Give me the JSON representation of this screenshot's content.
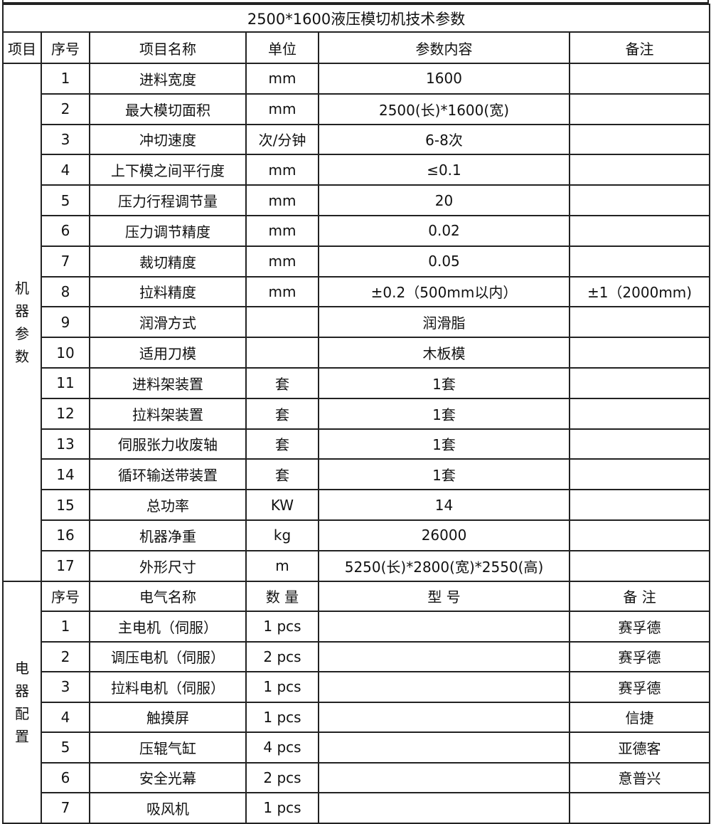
{
  "title": "2500*1600液压模切机技术参数",
  "header": [
    "项目",
    "序号",
    "项目名称",
    "单位",
    "参数内容",
    "备注"
  ],
  "machine": {
    "group": "机器参数",
    "rows": [
      [
        "1",
        "进料宽度",
        "mm",
        "1600",
        ""
      ],
      [
        "2",
        "最大模切面积",
        "mm",
        "2500(长)*1600(宽)",
        ""
      ],
      [
        "3",
        "冲切速度",
        "次/分钟",
        "6-8次",
        ""
      ],
      [
        "4",
        "上下模之间平行度",
        "mm",
        "≤0.1",
        ""
      ],
      [
        "5",
        "压力行程调节量",
        "mm",
        "20",
        ""
      ],
      [
        "6",
        "压力调节精度",
        "mm",
        "0.02",
        ""
      ],
      [
        "7",
        "裁切精度",
        "mm",
        "0.05",
        ""
      ],
      [
        "8",
        "拉料精度",
        "mm",
        "±0.2（500mm以内）",
        "±1（2000mm)"
      ],
      [
        "9",
        "润滑方式",
        "",
        "润滑脂",
        ""
      ],
      [
        "10",
        "适用刀模",
        "",
        "木板模",
        ""
      ],
      [
        "11",
        "进料架装置",
        "套",
        "1套",
        ""
      ],
      [
        "12",
        "拉料架装置",
        "套",
        "1套",
        ""
      ],
      [
        "13",
        "伺服张力收废轴",
        "套",
        "1套",
        ""
      ],
      [
        "14",
        "循环输送带装置",
        "套",
        "1套",
        ""
      ],
      [
        "15",
        "总功率",
        "KW",
        "14",
        ""
      ],
      [
        "16",
        "机器净重",
        "kg",
        "26000",
        ""
      ],
      [
        "17",
        "外形尺寸",
        "m",
        "5250(长)*2800(宽)*2550(高)",
        ""
      ]
    ]
  },
  "electrical": {
    "group": "电器配置",
    "header": [
      "序号",
      "电气名称",
      "数 量",
      "型 号",
      "备 注"
    ],
    "rows": [
      [
        "1",
        "主电机（伺服）",
        "1 pcs",
        "",
        "赛孚德"
      ],
      [
        "2",
        "调压电机（伺服）",
        "2 pcs",
        "",
        "赛孚德"
      ],
      [
        "3",
        "拉料电机（伺服）",
        "1 pcs",
        "",
        "赛孚德"
      ],
      [
        "4",
        "触摸屏",
        "1 pcs",
        "",
        "信捷"
      ],
      [
        "5",
        "压辊气缸",
        "4 pcs",
        "",
        "亚德客"
      ],
      [
        "6",
        "安全光幕",
        "2 pcs",
        "",
        "意普兴"
      ],
      [
        "7",
        "吸风机",
        "1 pcs",
        "",
        ""
      ]
    ]
  }
}
